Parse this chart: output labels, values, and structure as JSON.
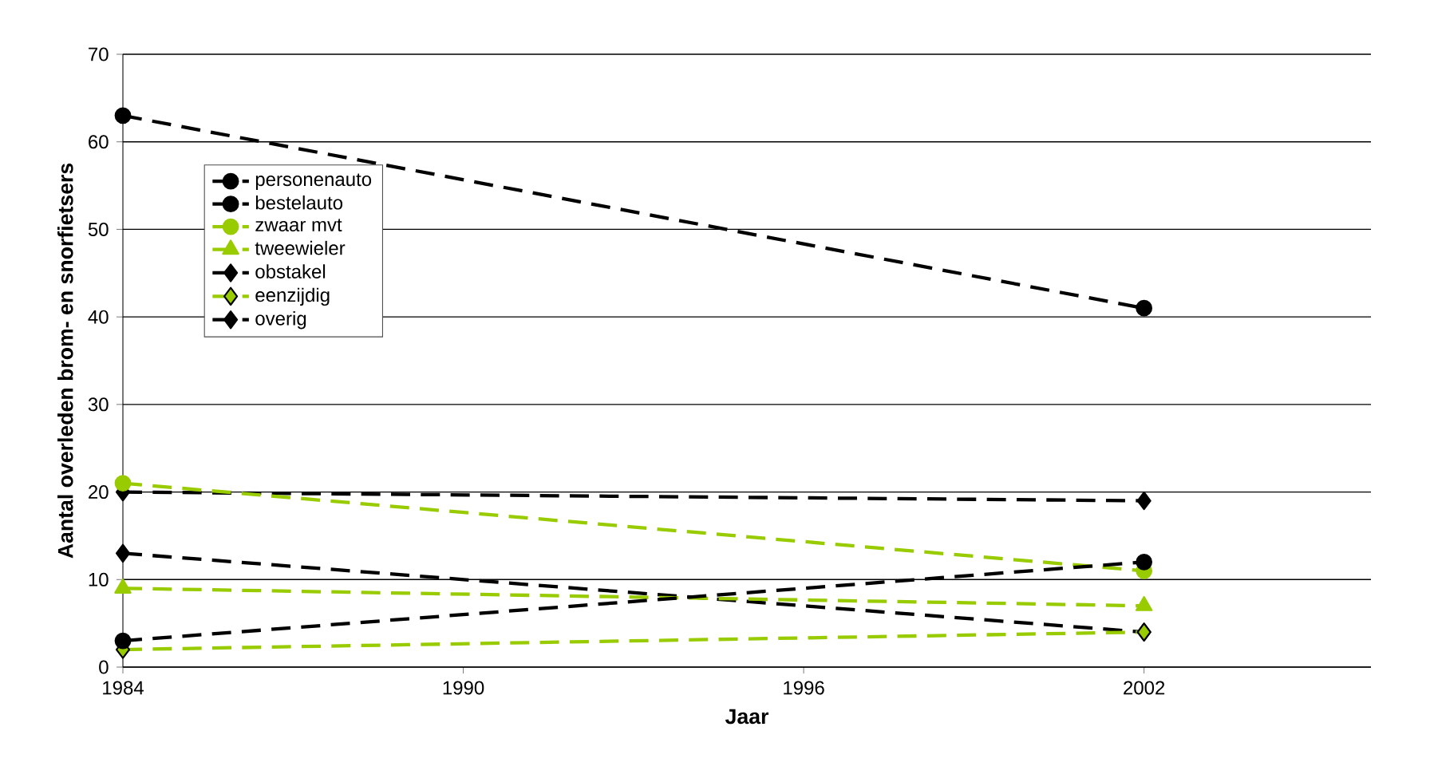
{
  "chart_data": {
    "type": "line",
    "xlabel": "Jaar",
    "ylabel": "Aantal overleden brom- en snorfietsers",
    "x": [
      1984,
      2002
    ],
    "xlim": [
      1984,
      2006
    ],
    "xticks": [
      1984,
      1990,
      1996,
      2002
    ],
    "ylim": [
      0,
      70
    ],
    "yticks": [
      0,
      10,
      20,
      30,
      40,
      50,
      60,
      70
    ],
    "grid": "y",
    "legend": "left",
    "line_style": "dashed",
    "series": [
      {
        "name": "personenauto",
        "color": "#000000",
        "marker": "circle",
        "values": [
          63,
          41
        ]
      },
      {
        "name": "bestelauto",
        "color": "#000000",
        "marker": "circle",
        "values": [
          3,
          12
        ]
      },
      {
        "name": "zwaar mvt",
        "color": "#99cc00",
        "marker": "circle",
        "values": [
          21,
          11
        ]
      },
      {
        "name": "tweewieler",
        "color": "#99cc00",
        "marker": "triangle",
        "values": [
          9,
          7
        ]
      },
      {
        "name": "obstakel",
        "color": "#000000",
        "marker": "diamond",
        "values": [
          20,
          19
        ]
      },
      {
        "name": "eenzijdig",
        "color": "#99cc00",
        "marker": "diamond",
        "values": [
          2,
          4
        ]
      },
      {
        "name": "overig",
        "color": "#000000",
        "marker": "diamond",
        "values": [
          13,
          4
        ]
      }
    ]
  }
}
